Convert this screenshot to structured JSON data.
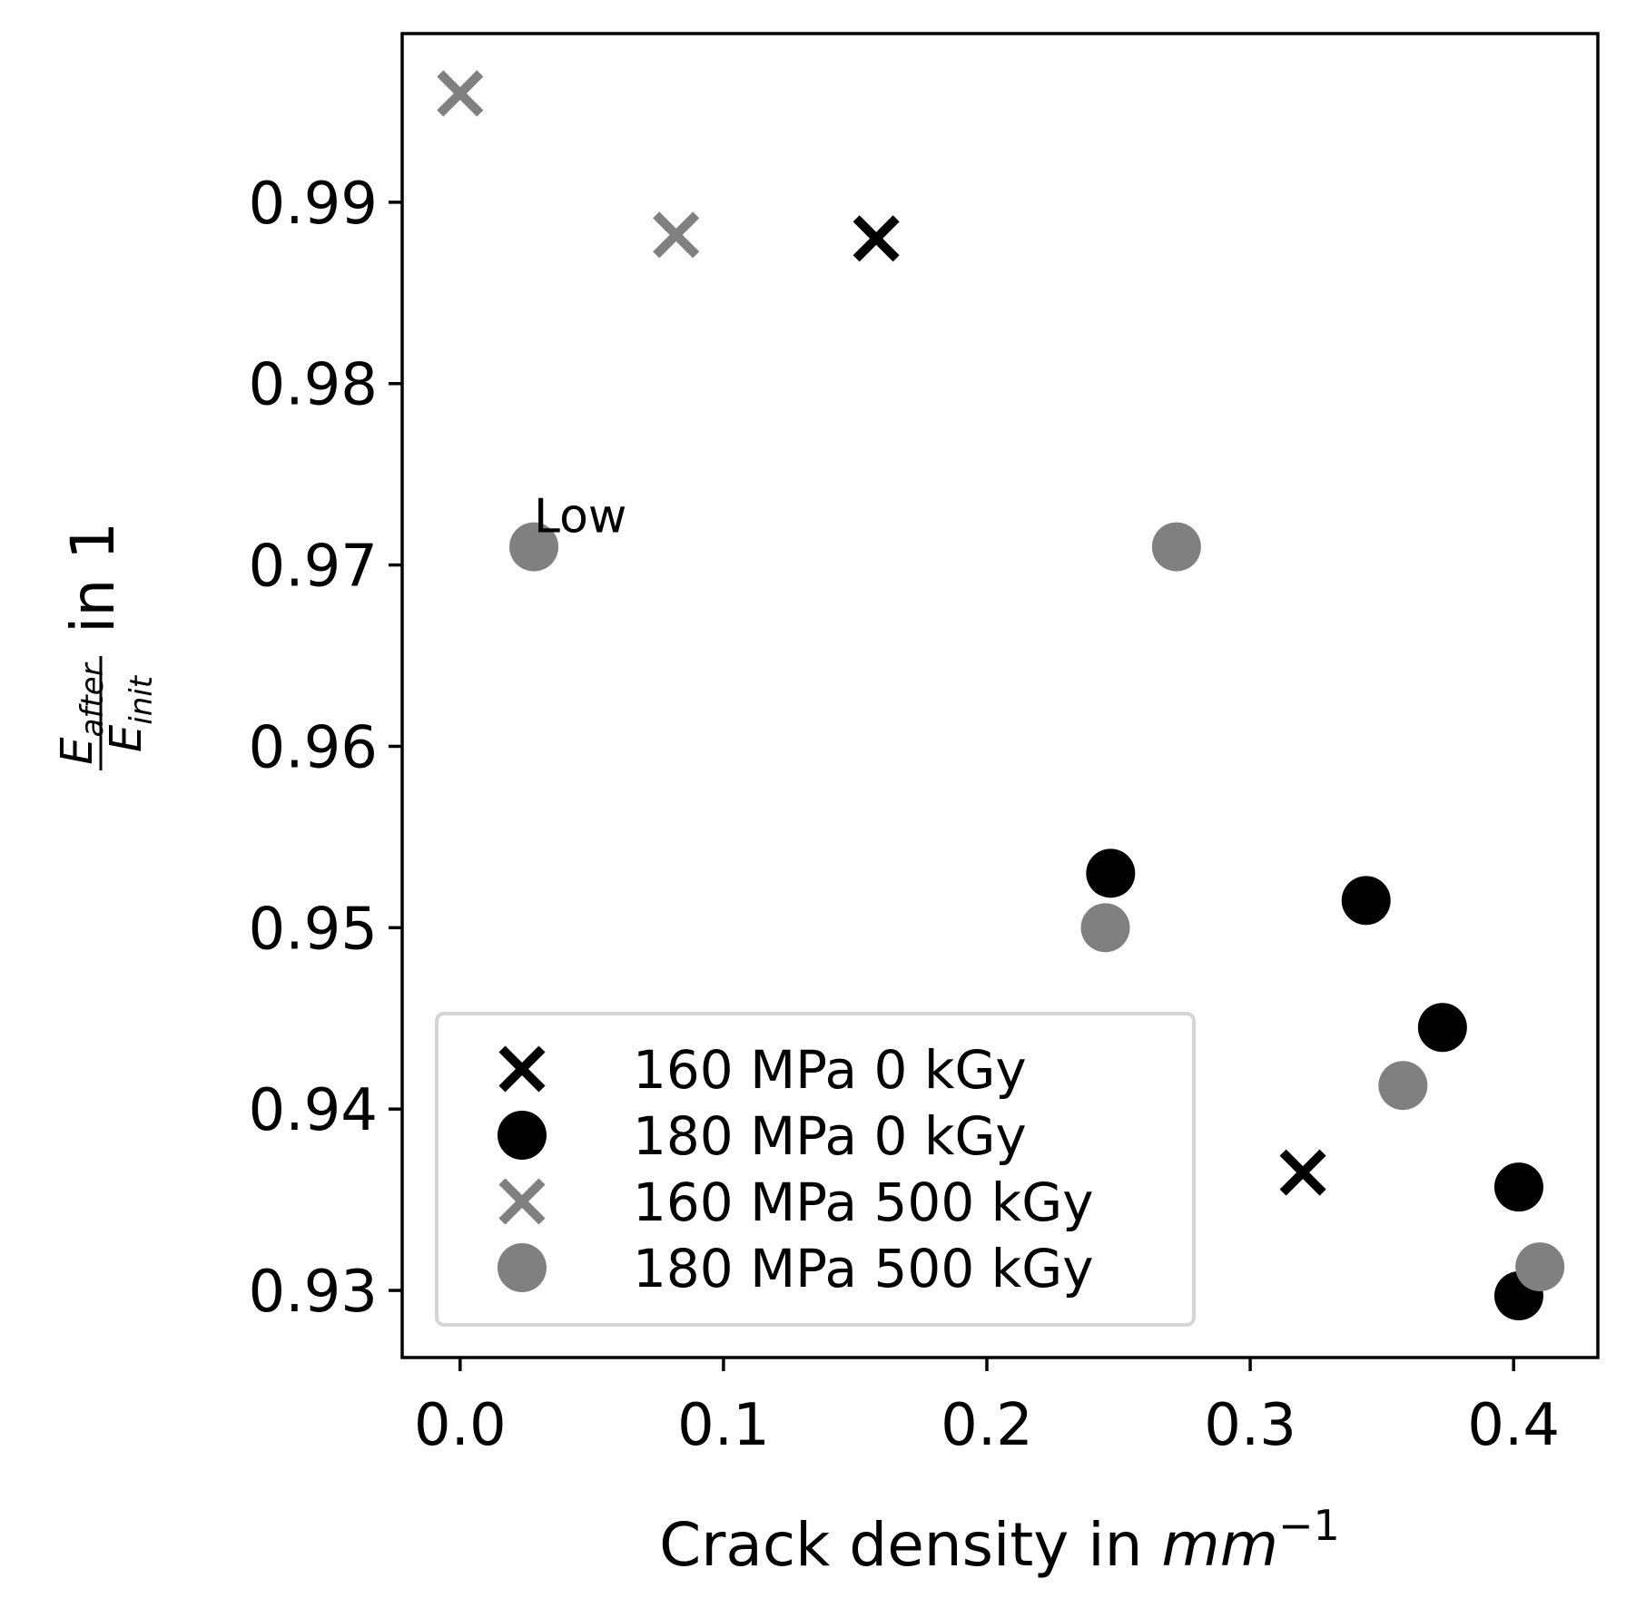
{
  "chart_data": {
    "type": "scatter",
    "title": "",
    "xlabel": "Crack density in ",
    "xlabel_math": "mm",
    "xlabel_sup": "−1",
    "ylabel_numerator": "E",
    "ylabel_numerator_sub": "after",
    "ylabel_denominator": "E",
    "ylabel_denominator_sub": "init",
    "ylabel_suffix": " in 1",
    "xlim": [
      -0.022,
      0.432
    ],
    "ylim": [
      0.9263,
      0.9993
    ],
    "xticks": [
      0.0,
      0.1,
      0.2,
      0.3,
      0.4
    ],
    "xtick_labels": [
      "0.0",
      "0.1",
      "0.2",
      "0.3",
      "0.4"
    ],
    "yticks": [
      0.93,
      0.94,
      0.95,
      0.96,
      0.97,
      0.98,
      0.99
    ],
    "ytick_labels": [
      "0.93",
      "0.94",
      "0.95",
      "0.96",
      "0.97",
      "0.98",
      "0.99"
    ],
    "grid": false,
    "legend_position": "lower-left",
    "series": [
      {
        "name": "160 MPa 0 kGy",
        "marker": "x",
        "color": "#000000",
        "points": [
          [
            0.158,
            0.988
          ],
          [
            0.32,
            0.9365
          ]
        ]
      },
      {
        "name": "180 MPa 0 kGy",
        "marker": "o",
        "color": "#000000",
        "points": [
          [
            0.247,
            0.953
          ],
          [
            0.344,
            0.9515
          ],
          [
            0.373,
            0.9445
          ],
          [
            0.402,
            0.9357
          ],
          [
            0.402,
            0.9297
          ]
        ]
      },
      {
        "name": "160 MPa 500 kGy",
        "marker": "x",
        "color": "#808080",
        "points": [
          [
            0.0,
            0.996
          ],
          [
            0.082,
            0.9882
          ]
        ]
      },
      {
        "name": "180 MPa 500 kGy",
        "marker": "o",
        "color": "#808080",
        "points": [
          [
            0.028,
            0.971
          ],
          [
            0.272,
            0.971
          ],
          [
            0.245,
            0.95
          ],
          [
            0.358,
            0.9413
          ],
          [
            0.41,
            0.9313
          ]
        ]
      }
    ],
    "annotations": [
      {
        "text": "Low",
        "x": 0.028,
        "y": 0.971
      }
    ]
  }
}
